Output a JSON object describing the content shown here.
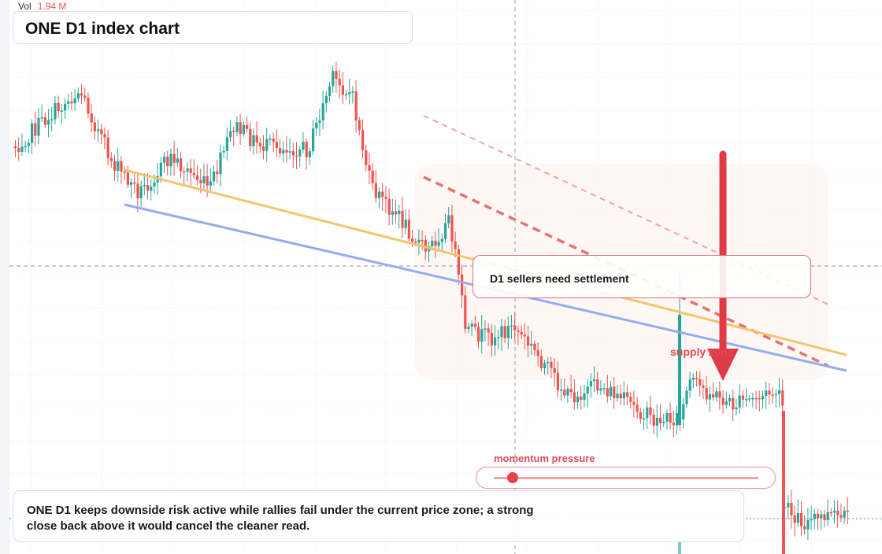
{
  "header": {
    "title": "ONE D1 index chart",
    "vol_label": "Vol",
    "vol_value": "1.94 M"
  },
  "annotations": {
    "callout": "D1 sellers need settlement",
    "supply_label": "supply zone",
    "momentum_label": "momentum pressure",
    "momentum_level": 0.07,
    "note": "ONE D1 keeps downside risk active while rallies fail under the current price zone; a strong close back above it would cancel the cleaner read."
  },
  "colors": {
    "up": "#26a69a",
    "down": "#ef5350",
    "support": "#8fa8f0",
    "trend": "#f6c26b",
    "accent": "#e03a45"
  },
  "chart_data": {
    "type": "candlestick",
    "title": "ONE D1 index chart",
    "y_direction": "price",
    "grid": true,
    "series": [
      {
        "name": "candles",
        "segments": [
          {
            "start": [
              18,
              186
            ],
            "points": [
              [
                60,
                148
              ],
              [
                100,
                115
              ],
              [
                140,
                205
              ],
              [
                175,
                245
              ],
              [
                215,
                200
              ],
              [
                265,
                240
              ],
              [
                295,
                160
              ],
              [
                330,
                185
              ],
              [
                390,
                190
              ],
              [
                420,
                100
              ],
              [
                445,
                120
              ],
              [
                470,
                240
              ],
              [
                500,
                270
              ],
              [
                540,
                320
              ],
              [
                570,
                280
              ],
              [
                590,
                420
              ],
              [
                620,
                430
              ],
              [
                650,
                415
              ],
              [
                680,
                450
              ],
              [
                720,
                505
              ],
              [
                760,
                490
              ],
              [
                800,
                515
              ],
              [
                830,
                535
              ],
              [
                860,
                530
              ]
            ]
          },
          {
            "start": [
              862,
              530
            ],
            "points": [
              [
                875,
                485
              ],
              [
                900,
                500
              ],
              [
                930,
                515
              ],
              [
                960,
                505
              ],
              [
                985,
                498
              ],
              [
                993,
                520
              ]
            ]
          },
          {
            "start": [
              995,
              645
            ],
            "points": [
              [
                1020,
                665
              ],
              [
                1050,
                655
              ],
              [
                1078,
                660
              ]
            ]
          }
        ]
      }
    ]
  }
}
